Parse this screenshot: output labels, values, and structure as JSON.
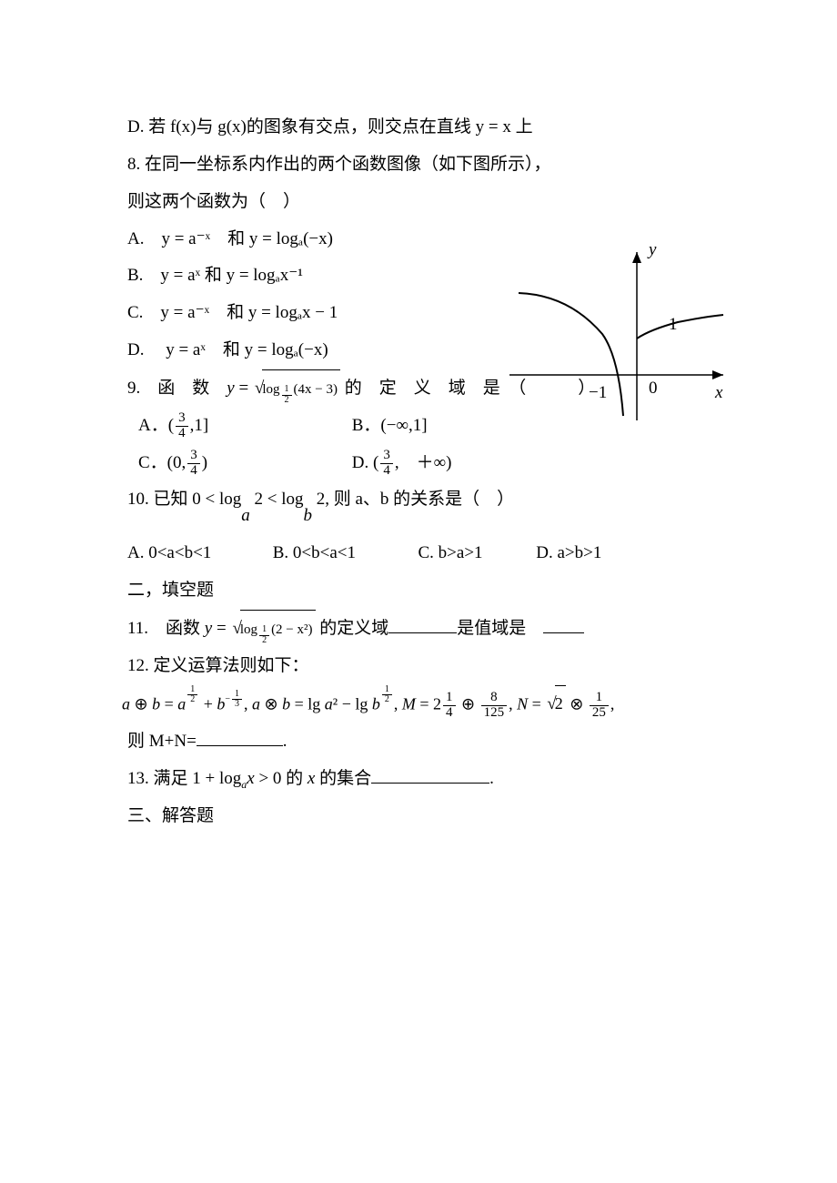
{
  "q7d": {
    "text": "D. 若 f(x)与 g(x)的图象有交点，则交点在直线 y = x 上"
  },
  "q8": {
    "stem1": "8. 在同一坐标系内作出的两个函数图像（如下图所示），",
    "stem2": "则这两个函数为（　）",
    "optA": "A.　y = a⁻ˣ　和 y = logₐ(−x)",
    "optB": "B.　y = aˣ 和 y = logₐx⁻¹",
    "optC": "C.　y = a⁻ˣ　和 y = logₐx − 1",
    "optD": "D.　 y = aˣ　和 y = logₐ(−x)",
    "graph": {
      "axis_color": "#000000",
      "curve_color": "#000000",
      "bg": "#ffffff",
      "labels": {
        "x": "x",
        "y": "y",
        "one": "1",
        "neg_one": "−1",
        "zero": "0"
      },
      "label_fontsize": 19
    }
  },
  "q9": {
    "stem_l": "9.　函　数　",
    "stem_r": "的　定　义　域　是　（　　　）",
    "radicand_inner": "(4x − 3)",
    "log_base_num": "1",
    "log_base_den": "2",
    "optA_pre": "A．(",
    "optA_frac_num": "3",
    "optA_frac_den": "4",
    "optA_post": ",1]",
    "optB": "B．(−∞,1]",
    "optC_pre": "C．(0,",
    "optC_num": "3",
    "optC_den": "4",
    "optC_post": ")",
    "optD_pre": "D. (",
    "optD_num": "3",
    "optD_den": "4",
    "optD_post": ",　＋∞)"
  },
  "q10": {
    "stem_l": "10. 已知 0 < log",
    "base_a": "a",
    "mid": " 2 < log",
    "base_b": "b",
    "stem_r": " 2, 则 a、b 的关系是（　）",
    "optA": "A. 0<a<b<1",
    "optB": "B. 0<b<a<1",
    "optC": "C. b>a>1",
    "optD": "D. a>b>1"
  },
  "sec2": "二，填空题",
  "q11": {
    "pre": "11.　函数 ",
    "mid": "的定义域",
    "tail": "是值域是　",
    "blank1_width": 75,
    "blank2_width": 45,
    "radicand_arg": "(2 − x²)",
    "log_base_num": "1",
    "log_base_den": "2"
  },
  "q12": {
    "stem": "12. 定义运算法则如下：",
    "line_a_pre": "a ⊕ b = a",
    "half_num": "1",
    "half_den": "2",
    "plus_b": " + b",
    "neg_third_num": "1",
    "neg_third_den": "3",
    "line_a_mid1": ", a ⊗ b = lg a² − lg b",
    "line_a_mid2": ", M = 2",
    "m_num": "1",
    "m_den": "4",
    "oplus": " ⊕ ",
    "eight_num": "8",
    "eight_den": "125",
    "line_a_mid3": ", N = ",
    "sqrt2": "2",
    "otimes": " ⊗ ",
    "one25_num": "1",
    "one25_den": "25",
    "comma": ",",
    "tail": "则 M+N=",
    "blank_width": 95,
    "period": "."
  },
  "q13": {
    "pre": "13. 满足 1 + log",
    "base": "a",
    "mid": "x > 0 的 x 的集合",
    "blank_width": 130,
    "period": "."
  },
  "sec3": "三、解答题"
}
